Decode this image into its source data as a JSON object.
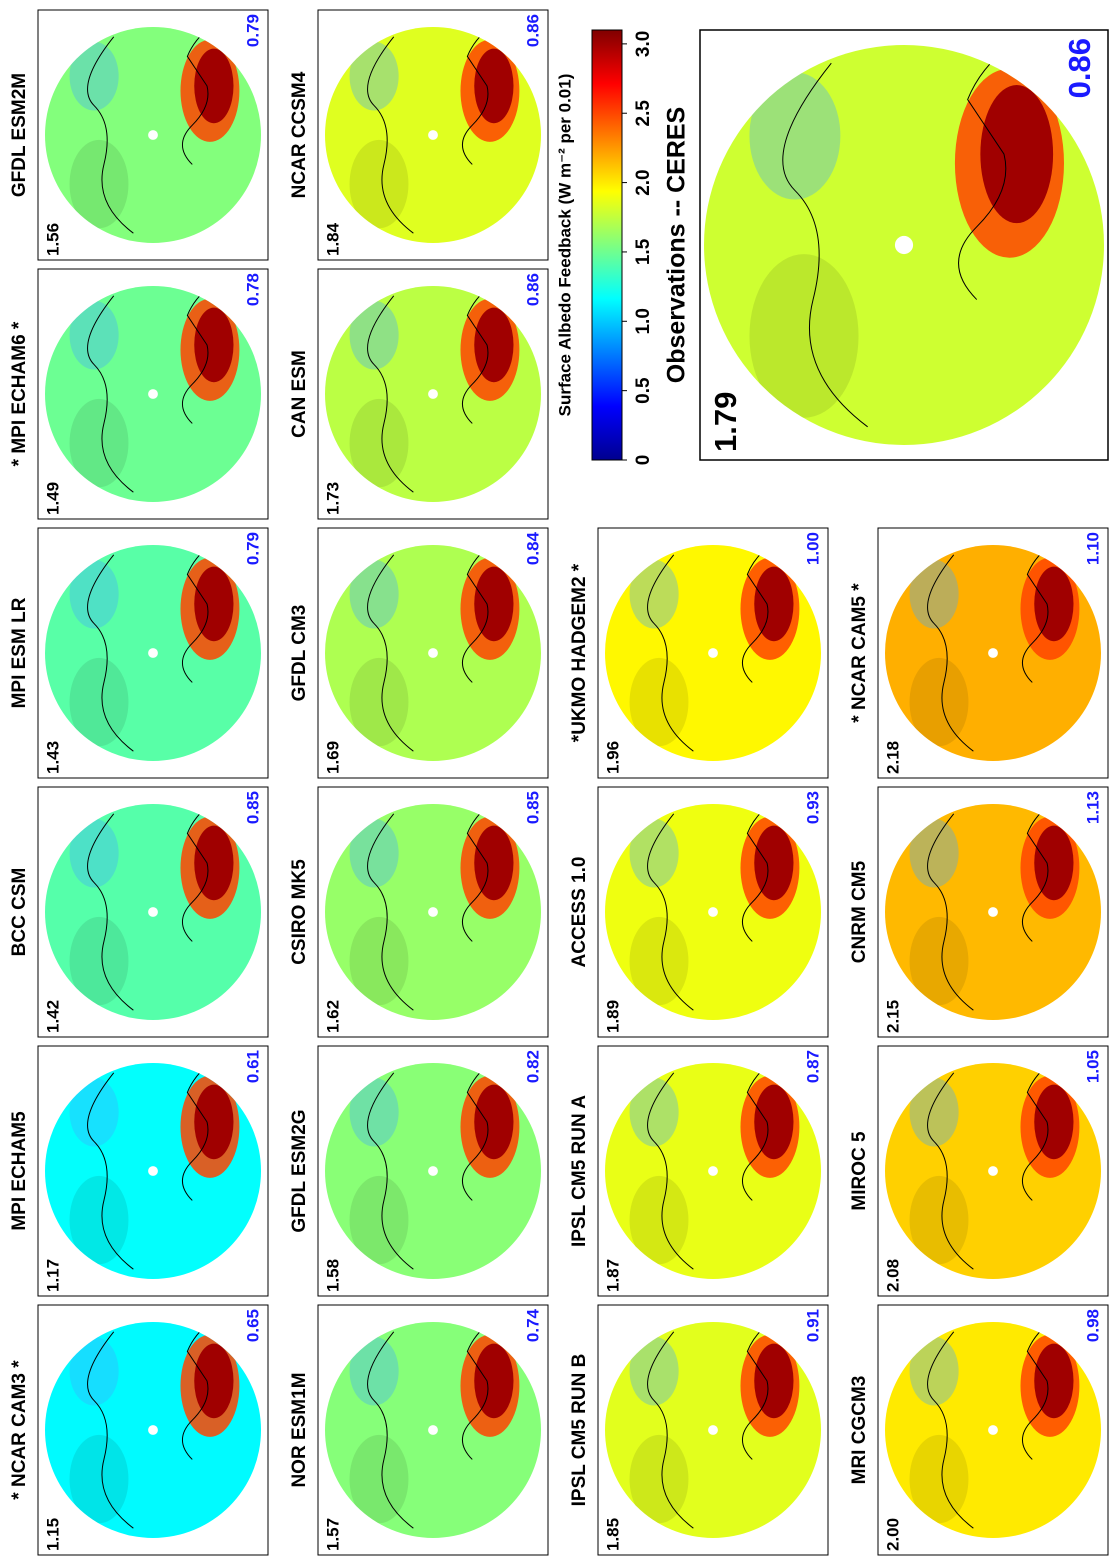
{
  "panels": [
    {
      "title": "* NCAR CAM3 *",
      "mean": "1.15",
      "correlation": "0.65"
    },
    {
      "title": "MPI ECHAM5",
      "mean": "1.17",
      "correlation": "0.61"
    },
    {
      "title": "BCC CSM",
      "mean": "1.42",
      "correlation": "0.85"
    },
    {
      "title": "MPI ESM LR",
      "mean": "1.43",
      "correlation": "0.79"
    },
    {
      "title": "* MPI ECHAM6 *",
      "mean": "1.49",
      "correlation": "0.78"
    },
    {
      "title": "GFDL ESM2M",
      "mean": "1.56",
      "correlation": "0.79"
    },
    {
      "title": "NOR ESM1M",
      "mean": "1.57",
      "correlation": "0.74"
    },
    {
      "title": "GFDL ESM2G",
      "mean": "1.58",
      "correlation": "0.82"
    },
    {
      "title": "CSIRO MK5",
      "mean": "1.62",
      "correlation": "0.85"
    },
    {
      "title": "GFDL CM3",
      "mean": "1.69",
      "correlation": "0.84"
    },
    {
      "title": "CAN ESM",
      "mean": "1.73",
      "correlation": "0.86"
    },
    {
      "title": "NCAR CCSM4",
      "mean": "1.84",
      "correlation": "0.86"
    },
    {
      "title": "IPSL CM5 RUN  B",
      "mean": "1.85",
      "correlation": "0.91"
    },
    {
      "title": "IPSL CM5 RUN  A",
      "mean": "1.87",
      "correlation": "0.87"
    },
    {
      "title": "ACCESS 1.0",
      "mean": "1.89",
      "correlation": "0.93"
    },
    {
      "title": "*UKMO HADGEM2 *",
      "mean": "1.96",
      "correlation": "1.00"
    },
    {
      "title": "MRI CGCM3",
      "mean": "2.00",
      "correlation": "0.98"
    },
    {
      "title": "MIROC 5",
      "mean": "2.08",
      "correlation": "1.05"
    },
    {
      "title": "CNRM CM5",
      "mean": "2.15",
      "correlation": "1.13"
    },
    {
      "title": "* NCAR CAM5 *",
      "mean": "2.18",
      "correlation": "1.10"
    }
  ],
  "colorbar": {
    "label": "Surface Albedo Feedback (W m⁻² per 0.01)",
    "clim": [
      0,
      3.1
    ],
    "ticks": [
      0,
      0.5,
      {
        "value": 1,
        "label": "1.0"
      },
      1.5,
      {
        "value": 2,
        "label": "2.0"
      },
      2.5,
      {
        "value": 3,
        "label": "3.0"
      }
    ]
  },
  "observations": {
    "title": "Observations -- CERES",
    "mean": "1.79",
    "correlation": "0.86"
  }
}
